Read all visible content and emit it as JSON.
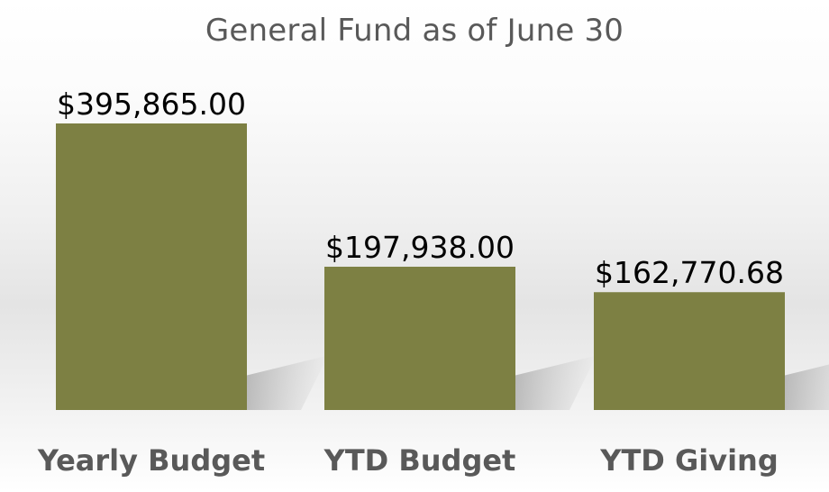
{
  "chart_data": {
    "type": "bar",
    "title": "General Fund as of June 30",
    "categories": [
      "Yearly Budget",
      "YTD Budget",
      "YTD Giving"
    ],
    "values": [
      395865.0,
      197938.0,
      162770.68
    ],
    "data_labels": [
      "$395,865.00",
      "$197,938.00",
      "$162,770.68"
    ],
    "bar_color": "#7d8043",
    "shadow_color": "#8c8c8c",
    "ylim": [
      0,
      400000
    ],
    "grid": false,
    "legend": "none",
    "xlabel": "",
    "ylabel": ""
  }
}
